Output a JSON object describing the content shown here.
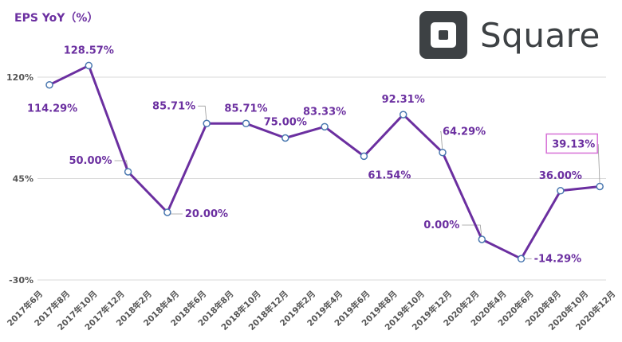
{
  "chart_data": {
    "type": "line",
    "title": "EPS YoY（%）",
    "brand": "Square",
    "categories": [
      "2017年6月",
      "2017年8月",
      "2017年10月",
      "2017年12月",
      "2018年2月",
      "2018年4月",
      "2018年6月",
      "2018年8月",
      "2018年10月",
      "2018年12月",
      "2019年2月",
      "2019年4月",
      "2019年6月",
      "2019年8月",
      "2019年10月",
      "2019年12月",
      "2020年2月",
      "2020年4月",
      "2020年6月",
      "2020年8月",
      "2020年10月",
      "2020年12月"
    ],
    "points": [
      {
        "x": 0,
        "value": 114.29,
        "label": "114.29%"
      },
      {
        "x": 1,
        "value": 128.57,
        "label": "128.57%"
      },
      {
        "x": 2,
        "value": 50.0,
        "label": "50.00%"
      },
      {
        "x": 3,
        "value": 20.0,
        "label": "20.00%"
      },
      {
        "x": 4,
        "value": 85.71,
        "label": "85.71%"
      },
      {
        "x": 5,
        "value": 85.71,
        "label": "85.71%"
      },
      {
        "x": 6,
        "value": 75.0,
        "label": "75.00%"
      },
      {
        "x": 7,
        "value": 83.33,
        "label": "83.33%"
      },
      {
        "x": 8,
        "value": 61.54,
        "label": "61.54%"
      },
      {
        "x": 9,
        "value": 92.31,
        "label": "92.31%"
      },
      {
        "x": 10,
        "value": 64.29,
        "label": "64.29%"
      },
      {
        "x": 11,
        "value": 0.0,
        "label": "0.00%"
      },
      {
        "x": 12,
        "value": -14.29,
        "label": "-14.29%"
      },
      {
        "x": 13,
        "value": 36.0,
        "label": "36.00%"
      },
      {
        "x": 14,
        "value": 39.13,
        "label": "39.13%",
        "highlight": true
      }
    ],
    "yticks": [
      {
        "value": 120,
        "label": "120%"
      },
      {
        "value": 45,
        "label": "45%"
      },
      {
        "value": -30,
        "label": "-30%"
      }
    ],
    "ylim": [
      -30,
      150
    ],
    "grid": true,
    "colors": {
      "line": "#6b2fa0",
      "label": "#6b2fa0",
      "highlight_box": "#d670d6",
      "grid": "#d9d9d9",
      "tick": "#555555",
      "marker_fill": "#ffffff",
      "marker_stroke": "#4a78b0"
    }
  }
}
